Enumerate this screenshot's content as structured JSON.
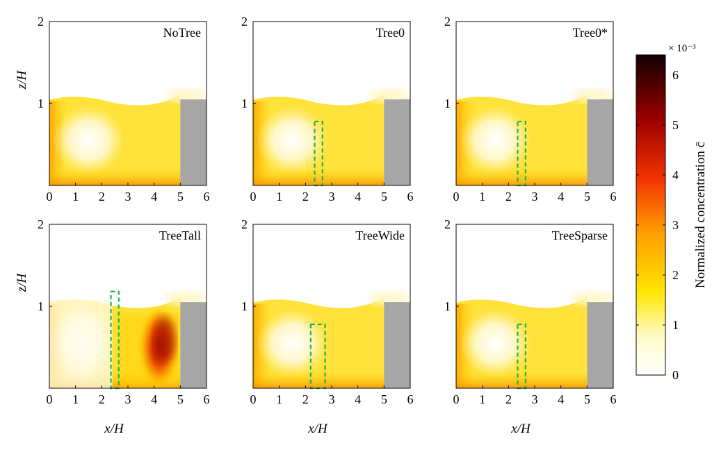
{
  "chart_data": {
    "type": "heatmap",
    "xlabel": "x/H",
    "ylabel": "z/H",
    "xlim": [
      0,
      6
    ],
    "ylim": [
      0,
      2
    ],
    "xticks": [
      "0",
      "1",
      "2",
      "3",
      "4",
      "5",
      "6"
    ],
    "yticks": [
      "1",
      "2"
    ],
    "building": {
      "x": [
        5,
        6
      ],
      "z": [
        0,
        1.05
      ],
      "color": "#a6a6a6"
    },
    "colorbar": {
      "label": "Normalized concentration c̄",
      "multiplier": "× 10⁻³",
      "ticks": [
        "0",
        "1",
        "2",
        "3",
        "4",
        "5",
        "6"
      ],
      "range": [
        0,
        6.4
      ]
    },
    "panels": [
      {
        "name": "NoTree",
        "tree": null
      },
      {
        "name": "Tree0",
        "tree": {
          "x": [
            2.35,
            2.65
          ],
          "z": [
            0,
            0.78
          ]
        }
      },
      {
        "name": "Tree0*",
        "tree": {
          "x": [
            2.35,
            2.65
          ],
          "z": [
            0,
            0.78
          ]
        }
      },
      {
        "name": "TreeTall",
        "tree": {
          "x": [
            2.35,
            2.65
          ],
          "z": [
            0,
            1.18
          ]
        }
      },
      {
        "name": "TreeWide",
        "tree": {
          "x": [
            2.2,
            2.75
          ],
          "z": [
            0,
            0.78
          ]
        }
      },
      {
        "name": "TreeSparse",
        "tree": {
          "x": [
            2.35,
            2.65
          ],
          "z": [
            0,
            0.78
          ]
        }
      }
    ]
  }
}
